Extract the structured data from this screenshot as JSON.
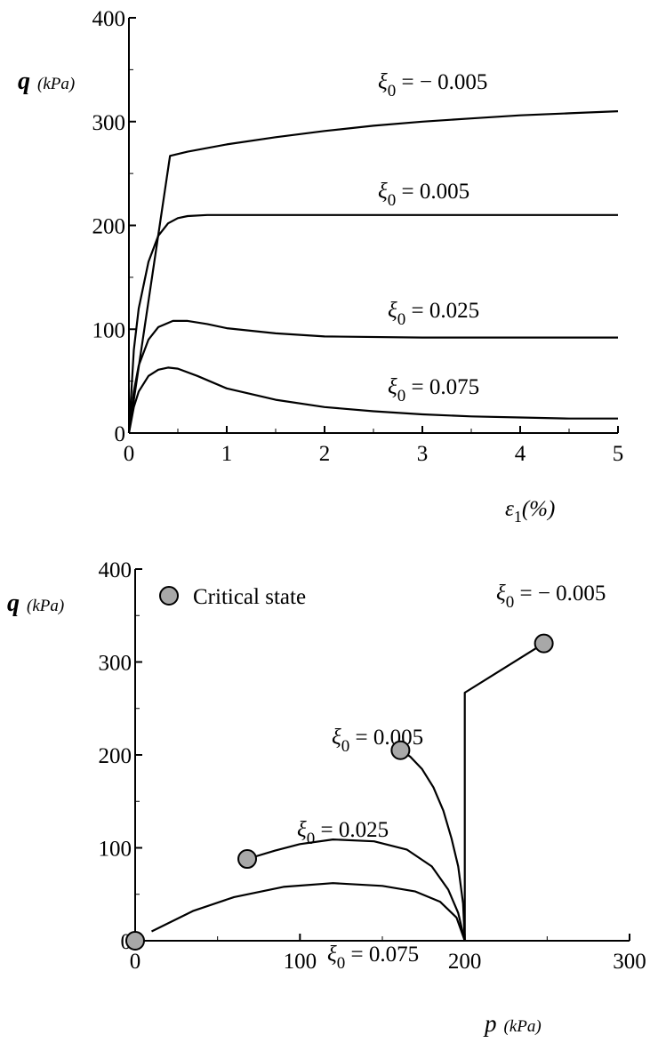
{
  "chart_data": [
    {
      "type": "line",
      "title": "",
      "xlabel": "ε1(%)",
      "ylabel": "q (kPa)",
      "xlim": [
        0,
        5
      ],
      "ylim": [
        0,
        400
      ],
      "xticks": [
        "0",
        "1",
        "2",
        "3",
        "4",
        "5"
      ],
      "yticks": [
        "0",
        "100",
        "200",
        "300",
        "400"
      ],
      "grid": false,
      "series": [
        {
          "name": "ξ0 = − 0.005",
          "x": [
            0,
            0.42,
            0.6,
            1,
            1.5,
            2,
            2.5,
            3,
            3.5,
            4,
            4.5,
            5
          ],
          "y": [
            0,
            267,
            271,
            278,
            285,
            291,
            296,
            300,
            303,
            306,
            308,
            310
          ]
        },
        {
          "name": "ξ0 = 0.005",
          "x": [
            0,
            0.05,
            0.1,
            0.2,
            0.3,
            0.4,
            0.5,
            0.6,
            0.8,
            1,
            2,
            3,
            4,
            5
          ],
          "y": [
            0,
            80,
            120,
            165,
            190,
            202,
            207,
            209,
            210,
            210,
            210,
            210,
            210,
            210
          ]
        },
        {
          "name": "ξ0 = 0.025",
          "x": [
            0,
            0.05,
            0.1,
            0.2,
            0.3,
            0.45,
            0.6,
            0.8,
            1,
            1.5,
            2,
            3,
            4,
            5
          ],
          "y": [
            0,
            40,
            65,
            90,
            102,
            108,
            108,
            105,
            101,
            96,
            93,
            92,
            92,
            92
          ]
        },
        {
          "name": "ξ0 = 0.075",
          "x": [
            0,
            0.05,
            0.1,
            0.2,
            0.3,
            0.4,
            0.5,
            0.7,
            1,
            1.5,
            2,
            2.5,
            3,
            3.5,
            4,
            4.5,
            5
          ],
          "y": [
            0,
            25,
            40,
            55,
            61,
            63,
            62,
            55,
            43,
            32,
            25,
            21,
            18,
            16,
            15,
            14,
            14
          ]
        }
      ]
    },
    {
      "type": "line",
      "title": "",
      "xlabel": "p (kPa)",
      "ylabel": "q (kPa)",
      "xlim": [
        0,
        300
      ],
      "ylim": [
        0,
        400
      ],
      "xticks": [
        "0",
        "100",
        "200",
        "300"
      ],
      "yticks": [
        "0",
        "100",
        "200",
        "300",
        "400"
      ],
      "grid": false,
      "legend": {
        "label": "Critical state",
        "position": "top-left"
      },
      "series": [
        {
          "name": "ξ0 = − 0.005",
          "x": [
            200,
            200,
            248
          ],
          "y": [
            0,
            267,
            320
          ]
        },
        {
          "name": "ξ0 = 0.005",
          "x": [
            200,
            199,
            196,
            192,
            187,
            181,
            174,
            167,
            161
          ],
          "y": [
            0,
            40,
            80,
            110,
            140,
            165,
            185,
            198,
            205
          ]
        },
        {
          "name": "ξ0 = 0.025",
          "x": [
            200,
            196,
            190,
            180,
            165,
            145,
            120,
            100,
            85,
            68
          ],
          "y": [
            0,
            30,
            55,
            80,
            98,
            107,
            109,
            104,
            97,
            88
          ]
        },
        {
          "name": "ξ0 = 0.075",
          "x": [
            200,
            195,
            185,
            170,
            150,
            120,
            90,
            60,
            35,
            10
          ],
          "y": [
            0,
            25,
            42,
            53,
            59,
            62,
            58,
            47,
            32,
            10
          ]
        }
      ],
      "critical_state_points": [
        {
          "x": 248,
          "y": 320
        },
        {
          "x": 161,
          "y": 205
        },
        {
          "x": 68,
          "y": 88
        },
        {
          "x": 0,
          "y": 0
        }
      ]
    }
  ],
  "charts": [
    {
      "labels": [
        "ξ0 = − 0.005",
        "ξ0 = 0.005",
        "ξ0 = 0.025",
        "ξ0 = 0.075"
      ]
    },
    {
      "labels": [
        "ξ0 = − 0.005",
        "ξ0 = 0.005",
        "ξ0 = 0.025",
        "ξ0 = 0.075"
      ]
    }
  ]
}
